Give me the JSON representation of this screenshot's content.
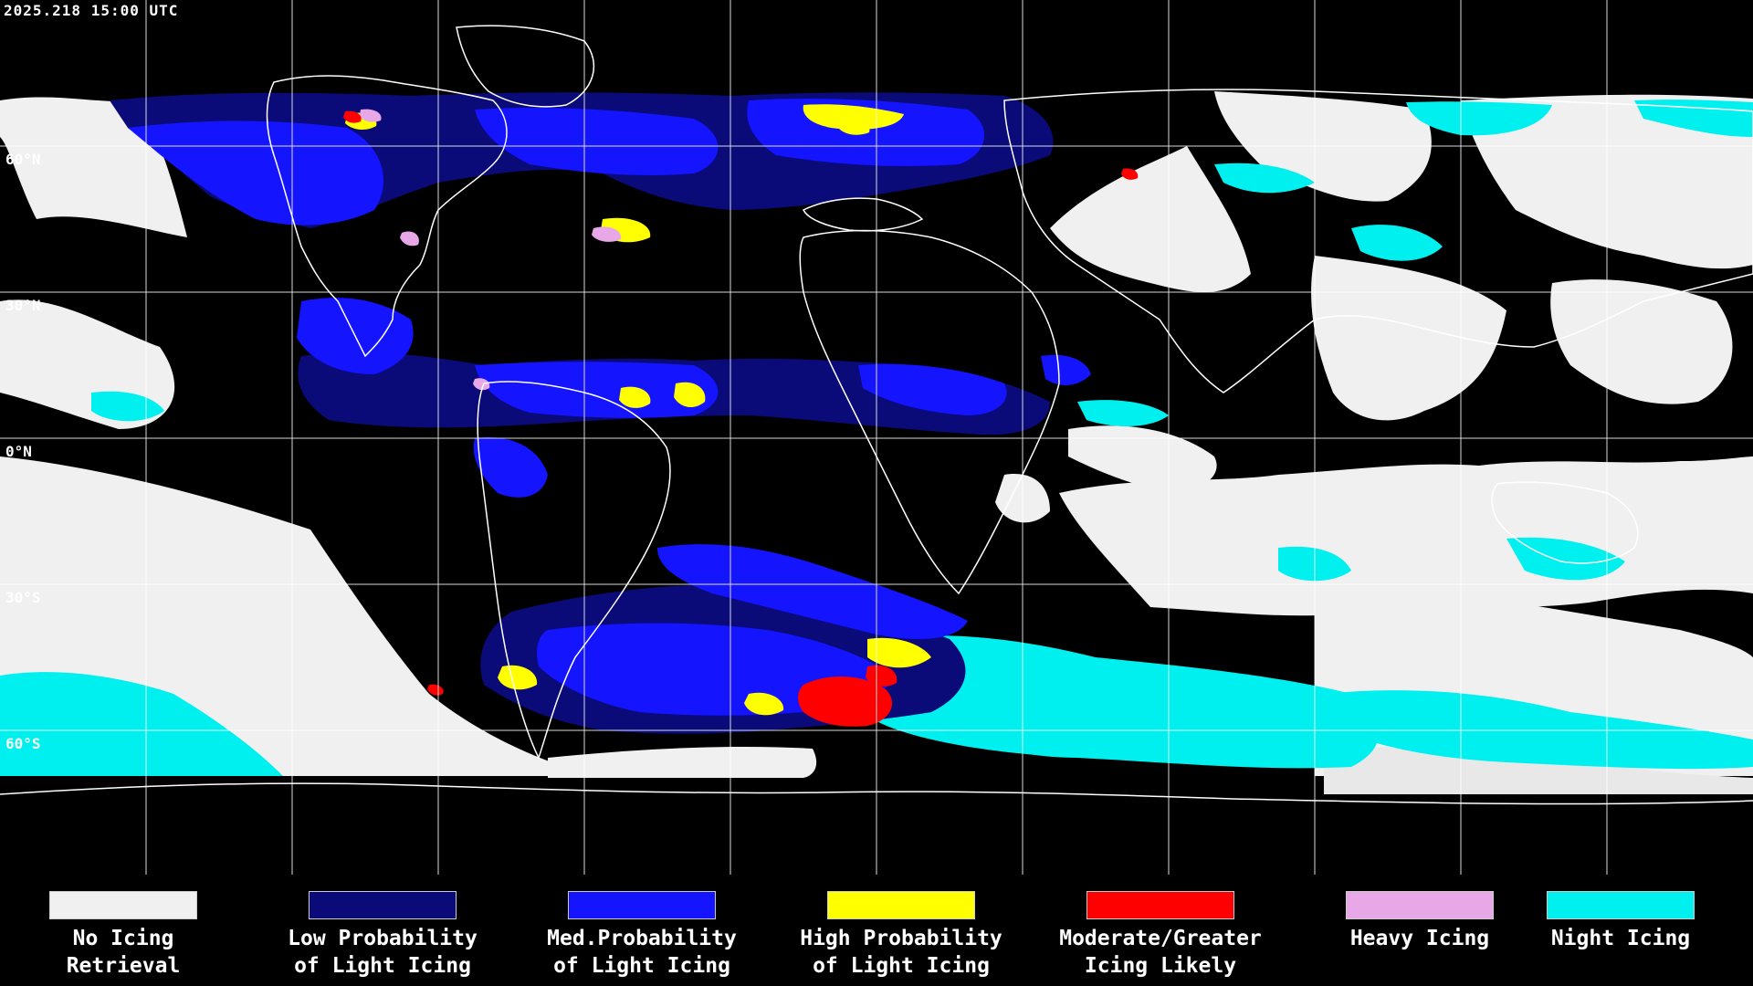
{
  "header": {
    "timestamp": "2025.218 15:00 UTC"
  },
  "grid": {
    "lat_labels": [
      "60°N",
      "30°N",
      "0°N",
      "30°S",
      "60°S"
    ]
  },
  "legend": {
    "items": [
      {
        "line1": "No Icing",
        "line2": "Retrieval",
        "color": "#f0f0f0"
      },
      {
        "line1": "Low Probability",
        "line2": "of Light Icing",
        "color": "#0a0a78"
      },
      {
        "line1": "Med.Probability",
        "line2": "of Light Icing",
        "color": "#1414ff"
      },
      {
        "line1": "High Probability",
        "line2": "of Light Icing",
        "color": "#ffff00"
      },
      {
        "line1": "Moderate/Greater",
        "line2": "Icing Likely",
        "color": "#ff0000"
      },
      {
        "line1": "Heavy Icing",
        "line2": "",
        "color": "#e8a8e8"
      },
      {
        "line1": "Night Icing",
        "line2": "",
        "color": "#00f0f0"
      }
    ]
  },
  "colors": {
    "background": "#000000",
    "grid": "#ffffff",
    "coastline": "#ffffff"
  }
}
